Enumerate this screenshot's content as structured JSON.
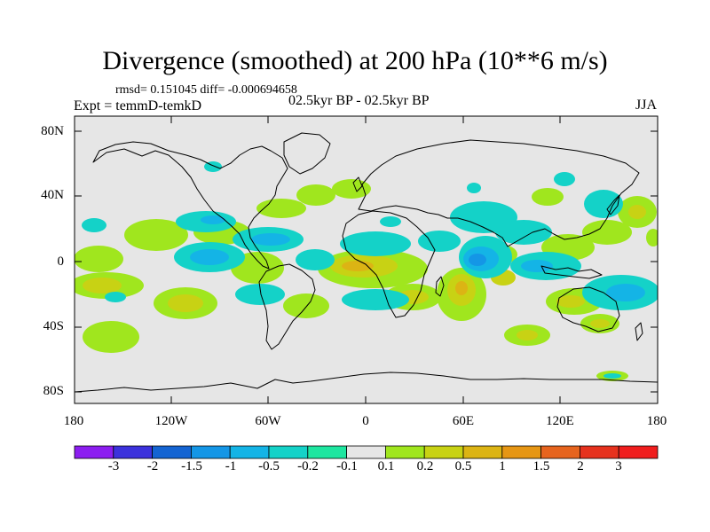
{
  "title": "Divergence (smoothed) at 200 hPa (10**6 m/s)",
  "stats": "rmsd= 0.151045 diff= -0.000694658",
  "experiment": "Expt = temmD-temkD",
  "period": "02.5kyr BP - 02.5kyr BP",
  "season": "JJA",
  "axes": {
    "y_ticks": [
      "80N",
      "40N",
      "0",
      "40S",
      "80S"
    ],
    "x_ticks": [
      "180",
      "120W",
      "60W",
      "0",
      "60E",
      "120E",
      "180"
    ]
  },
  "colorbar": {
    "labels": [
      "-3",
      "-2",
      "-1.5",
      "-1",
      "-0.5",
      "-0.2",
      "-0.1",
      "0.1",
      "0.2",
      "0.5",
      "1",
      "1.5",
      "2",
      "3"
    ],
    "colors": [
      "#8c1ef0",
      "#3c32dc",
      "#1464d2",
      "#1496e6",
      "#14b4e6",
      "#14d2c8",
      "#1ee6a0",
      "#e6e6e6",
      "#a0e61e",
      "#c8d214",
      "#dcb414",
      "#e69614",
      "#e6641e",
      "#e6321e",
      "#f01e1e"
    ]
  },
  "land_color": "#e6e6e6",
  "coast_color": "#000000"
}
